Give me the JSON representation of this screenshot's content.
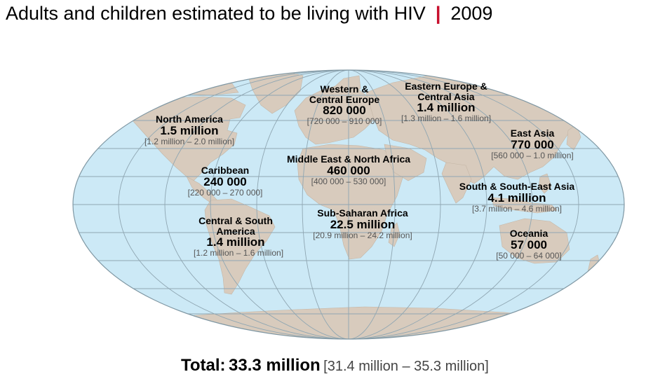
{
  "title": {
    "text": "Adults and children estimated to be living with HIV",
    "separator": "|",
    "year": "2009",
    "separator_color": "#c8102e"
  },
  "colors": {
    "ocean": "#cce9f6",
    "land": "#d8cbbd",
    "grid": "#8fa6b2"
  },
  "regions": [
    {
      "name": "North America",
      "value": "1.5 million",
      "range": "[1.2 million – 2.0 million]"
    },
    {
      "name": "Western & Central Europe",
      "value": "820 000",
      "range": "[720 000 – 910 000]"
    },
    {
      "name": "Eastern Europe & Central Asia",
      "value": "1.4 million",
      "range": "[1.3 million – 1.6 million]"
    },
    {
      "name": "East Asia",
      "value": "770 000",
      "range": "[560 000 – 1.0 million]"
    },
    {
      "name": "Caribbean",
      "value": "240 000",
      "range": "[220 000 – 270 000]"
    },
    {
      "name": "Middle East & North Africa",
      "value": "460 000",
      "range": "[400 000 – 530 000]"
    },
    {
      "name": "South & South-East Asia",
      "value": "4.1 million",
      "range": "[3.7 million – 4.6 million]"
    },
    {
      "name": "Sub-Saharan Africa",
      "value": "22.5 million",
      "range": "[20.9 million – 24.2 million]"
    },
    {
      "name": "Central & South America",
      "value": "1.4 million",
      "range": "[1.2 million – 1.6 million]"
    },
    {
      "name": "Oceania",
      "value": "57 000",
      "range": "[50 000 – 64 000]"
    }
  ],
  "total": {
    "label": "Total:",
    "value": "33.3 million",
    "range": "[31.4 million – 35.3 million]"
  }
}
